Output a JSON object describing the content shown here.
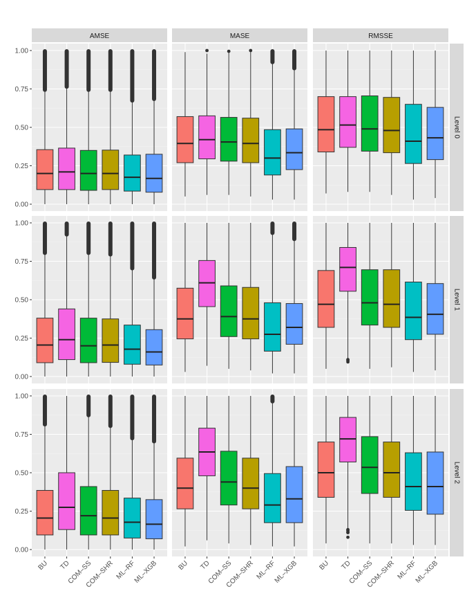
{
  "chart_data": {
    "type": "boxplot",
    "facet_columns": [
      "AMSE",
      "MASE",
      "RMSSE"
    ],
    "facet_rows": [
      "Level 0",
      "Level 1",
      "Level 2"
    ],
    "categories": [
      "BU",
      "TD",
      "COM–SS",
      "COM–SHR",
      "ML–RF",
      "ML–XGB"
    ],
    "category_colors": [
      "#F8766D",
      "#F564E3",
      "#00BA38",
      "#B79F00",
      "#00BFC4",
      "#619CFF"
    ],
    "ylim": [
      0,
      1
    ],
    "y_ticks": [
      0,
      0.25,
      0.5,
      0.75,
      1
    ],
    "y_tick_labels": [
      "0.00",
      "0.25",
      "0.50",
      "0.75",
      "1.00"
    ],
    "grid": true,
    "legend": "none",
    "panels": [
      {
        "column": "AMSE",
        "row": "Level 0",
        "boxes": [
          {
            "q1": 0.095,
            "median": 0.2,
            "q3": 0.355,
            "wmin": 0.0,
            "wmax": 0.74,
            "outlier_range": [
              0.74,
              1.0
            ]
          },
          {
            "q1": 0.095,
            "median": 0.21,
            "q3": 0.365,
            "wmin": 0.0,
            "wmax": 0.76,
            "outlier_range": [
              0.76,
              1.0
            ]
          },
          {
            "q1": 0.09,
            "median": 0.2,
            "q3": 0.35,
            "wmin": 0.0,
            "wmax": 0.74,
            "outlier_range": [
              0.74,
              1.0
            ]
          },
          {
            "q1": 0.095,
            "median": 0.2,
            "q3": 0.352,
            "wmin": 0.0,
            "wmax": 0.74,
            "outlier_range": [
              0.74,
              1.0
            ]
          },
          {
            "q1": 0.085,
            "median": 0.175,
            "q3": 0.32,
            "wmin": 0.0,
            "wmax": 0.67,
            "outlier_range": [
              0.67,
              1.0
            ]
          },
          {
            "q1": 0.078,
            "median": 0.168,
            "q3": 0.325,
            "wmin": 0.0,
            "wmax": 0.68,
            "outlier_range": [
              0.68,
              1.0
            ]
          }
        ]
      },
      {
        "column": "MASE",
        "row": "Level 0",
        "boxes": [
          {
            "q1": 0.27,
            "median": 0.395,
            "q3": 0.57,
            "wmin": 0.05,
            "wmax": 0.99,
            "outliers": []
          },
          {
            "q1": 0.295,
            "median": 0.42,
            "q3": 0.575,
            "wmin": 0.06,
            "wmax": 0.98,
            "outliers": [
              1.0
            ]
          },
          {
            "q1": 0.28,
            "median": 0.405,
            "q3": 0.565,
            "wmin": 0.06,
            "wmax": 0.99,
            "outliers": [
              0.995
            ]
          },
          {
            "q1": 0.27,
            "median": 0.395,
            "q3": 0.56,
            "wmin": 0.05,
            "wmax": 0.99,
            "outliers": [
              1.0
            ]
          },
          {
            "q1": 0.19,
            "median": 0.3,
            "q3": 0.485,
            "wmin": 0.03,
            "wmax": 0.92,
            "outlier_range": [
              0.92,
              1.0
            ]
          },
          {
            "q1": 0.225,
            "median": 0.335,
            "q3": 0.49,
            "wmin": 0.03,
            "wmax": 0.88,
            "outlier_range": [
              0.88,
              1.0
            ]
          }
        ]
      },
      {
        "column": "RMSSE",
        "row": "Level 0",
        "boxes": [
          {
            "q1": 0.34,
            "median": 0.485,
            "q3": 0.7,
            "wmin": 0.07,
            "wmax": 1.0
          },
          {
            "q1": 0.37,
            "median": 0.515,
            "q3": 0.7,
            "wmin": 0.08,
            "wmax": 1.0
          },
          {
            "q1": 0.345,
            "median": 0.49,
            "q3": 0.705,
            "wmin": 0.08,
            "wmax": 1.0
          },
          {
            "q1": 0.335,
            "median": 0.48,
            "q3": 0.695,
            "wmin": 0.06,
            "wmax": 1.0
          },
          {
            "q1": 0.265,
            "median": 0.41,
            "q3": 0.65,
            "wmin": 0.03,
            "wmax": 1.0
          },
          {
            "q1": 0.29,
            "median": 0.432,
            "q3": 0.63,
            "wmin": 0.04,
            "wmax": 1.0
          }
        ]
      },
      {
        "column": "AMSE",
        "row": "Level 1",
        "boxes": [
          {
            "q1": 0.09,
            "median": 0.205,
            "q3": 0.38,
            "wmin": 0.0,
            "wmax": 0.8,
            "outlier_range": [
              0.8,
              1.0
            ]
          },
          {
            "q1": 0.11,
            "median": 0.24,
            "q3": 0.44,
            "wmin": 0.0,
            "wmax": 0.92,
            "outlier_range": [
              0.92,
              1.0
            ]
          },
          {
            "q1": 0.09,
            "median": 0.2,
            "q3": 0.38,
            "wmin": 0.0,
            "wmax": 0.8,
            "outlier_range": [
              0.8,
              1.0
            ]
          },
          {
            "q1": 0.092,
            "median": 0.205,
            "q3": 0.375,
            "wmin": 0.0,
            "wmax": 0.79,
            "outlier_range": [
              0.79,
              1.0
            ]
          },
          {
            "q1": 0.08,
            "median": 0.178,
            "q3": 0.335,
            "wmin": 0.0,
            "wmax": 0.7,
            "outlier_range": [
              0.7,
              1.0
            ]
          },
          {
            "q1": 0.075,
            "median": 0.16,
            "q3": 0.305,
            "wmin": 0.0,
            "wmax": 0.64,
            "outlier_range": [
              0.64,
              1.0
            ]
          }
        ]
      },
      {
        "column": "MASE",
        "row": "Level 1",
        "boxes": [
          {
            "q1": 0.245,
            "median": 0.375,
            "q3": 0.575,
            "wmin": 0.03,
            "wmax": 1.0
          },
          {
            "q1": 0.455,
            "median": 0.61,
            "q3": 0.755,
            "wmin": 0.07,
            "wmax": 1.0
          },
          {
            "q1": 0.26,
            "median": 0.39,
            "q3": 0.59,
            "wmin": 0.05,
            "wmax": 1.0
          },
          {
            "q1": 0.245,
            "median": 0.375,
            "q3": 0.58,
            "wmin": 0.04,
            "wmax": 1.0
          },
          {
            "q1": 0.165,
            "median": 0.275,
            "q3": 0.48,
            "wmin": 0.02,
            "wmax": 0.93,
            "outlier_range": [
              0.93,
              1.0
            ]
          },
          {
            "q1": 0.21,
            "median": 0.32,
            "q3": 0.475,
            "wmin": 0.02,
            "wmax": 0.89,
            "outlier_range": [
              0.89,
              1.0
            ]
          }
        ]
      },
      {
        "column": "RMSSE",
        "row": "Level 1",
        "boxes": [
          {
            "q1": 0.32,
            "median": 0.47,
            "q3": 0.69,
            "wmin": 0.05,
            "wmax": 1.0
          },
          {
            "q1": 0.555,
            "median": 0.71,
            "q3": 0.84,
            "wmin": 0.12,
            "wmax": 1.0,
            "outliers": [
              0.095,
              0.105,
              0.11
            ]
          },
          {
            "q1": 0.335,
            "median": 0.48,
            "q3": 0.695,
            "wmin": 0.05,
            "wmax": 1.0
          },
          {
            "q1": 0.32,
            "median": 0.47,
            "q3": 0.695,
            "wmin": 0.06,
            "wmax": 1.0
          },
          {
            "q1": 0.24,
            "median": 0.385,
            "q3": 0.615,
            "wmin": 0.03,
            "wmax": 1.0
          },
          {
            "q1": 0.275,
            "median": 0.405,
            "q3": 0.605,
            "wmin": 0.04,
            "wmax": 1.0
          }
        ]
      },
      {
        "column": "AMSE",
        "row": "Level 2",
        "boxes": [
          {
            "q1": 0.095,
            "median": 0.205,
            "q3": 0.385,
            "wmin": 0.0,
            "wmax": 0.81,
            "outlier_range": [
              0.81,
              1.0
            ]
          },
          {
            "q1": 0.13,
            "median": 0.275,
            "q3": 0.5,
            "wmin": 0.0,
            "wmax": 1.0
          },
          {
            "q1": 0.095,
            "median": 0.22,
            "q3": 0.41,
            "wmin": 0.0,
            "wmax": 0.87,
            "outlier_range": [
              0.87,
              1.0
            ]
          },
          {
            "q1": 0.095,
            "median": 0.205,
            "q3": 0.385,
            "wmin": 0.0,
            "wmax": 0.8,
            "outlier_range": [
              0.8,
              1.0
            ]
          },
          {
            "q1": 0.075,
            "median": 0.178,
            "q3": 0.335,
            "wmin": 0.0,
            "wmax": 0.72,
            "outlier_range": [
              0.72,
              1.0
            ]
          },
          {
            "q1": 0.07,
            "median": 0.165,
            "q3": 0.325,
            "wmin": 0.0,
            "wmax": 0.7,
            "outlier_range": [
              0.7,
              1.0
            ]
          }
        ]
      },
      {
        "column": "MASE",
        "row": "Level 2",
        "boxes": [
          {
            "q1": 0.265,
            "median": 0.4,
            "q3": 0.595,
            "wmin": 0.02,
            "wmax": 1.0
          },
          {
            "q1": 0.48,
            "median": 0.635,
            "q3": 0.79,
            "wmin": 0.06,
            "wmax": 1.0
          },
          {
            "q1": 0.29,
            "median": 0.44,
            "q3": 0.64,
            "wmin": 0.04,
            "wmax": 1.0
          },
          {
            "q1": 0.265,
            "median": 0.4,
            "q3": 0.595,
            "wmin": 0.03,
            "wmax": 1.0
          },
          {
            "q1": 0.175,
            "median": 0.29,
            "q3": 0.495,
            "wmin": 0.02,
            "wmax": 0.96,
            "outlier_range": [
              0.96,
              1.0
            ]
          },
          {
            "q1": 0.175,
            "median": 0.33,
            "q3": 0.54,
            "wmin": 0.02,
            "wmax": 1.0
          }
        ]
      },
      {
        "column": "RMSSE",
        "row": "Level 2",
        "boxes": [
          {
            "q1": 0.34,
            "median": 0.5,
            "q3": 0.7,
            "wmin": 0.04,
            "wmax": 1.0
          },
          {
            "q1": 0.57,
            "median": 0.72,
            "q3": 0.86,
            "wmin": 0.14,
            "wmax": 1.0,
            "outliers": [
              0.08,
              0.11,
              0.115,
              0.125,
              0.13
            ]
          },
          {
            "q1": 0.365,
            "median": 0.535,
            "q3": 0.735,
            "wmin": 0.04,
            "wmax": 1.0
          },
          {
            "q1": 0.34,
            "median": 0.5,
            "q3": 0.7,
            "wmin": 0.04,
            "wmax": 1.0
          },
          {
            "q1": 0.255,
            "median": 0.41,
            "q3": 0.63,
            "wmin": 0.03,
            "wmax": 1.0
          },
          {
            "q1": 0.23,
            "median": 0.41,
            "q3": 0.635,
            "wmin": 0.03,
            "wmax": 1.0
          }
        ]
      }
    ]
  }
}
